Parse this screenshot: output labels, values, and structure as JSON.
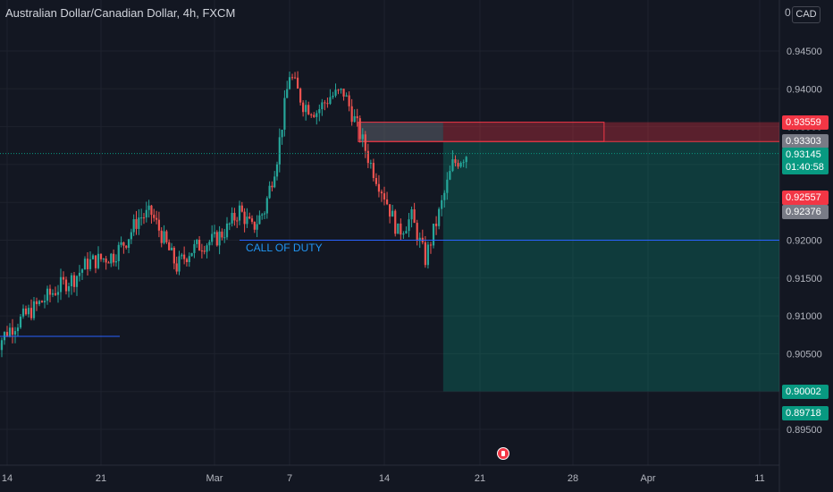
{
  "header": {
    "pair": "Australian Dollar/Canadian Dollar",
    "interval": "4h",
    "exchange": "FXCM",
    "currency": "CAD",
    "currency_prefix": "0"
  },
  "annotation": {
    "label": "CALL OF DUTY"
  },
  "price_tags": [
    {
      "label": "0.93559",
      "price": 0.93559,
      "color": "#f23645"
    },
    {
      "label": "0.93303",
      "price": 0.93303,
      "color": "#787b86"
    },
    {
      "label": "0.93145",
      "time": "01:40:58",
      "price": 0.93145,
      "color": "#089981"
    },
    {
      "label": "0.92557",
      "price": 0.92557,
      "color": "#f23645"
    },
    {
      "label": "0.92376",
      "price": 0.92376,
      "color": "#787b86"
    },
    {
      "label": "0.90002",
      "price": 0.90002,
      "color": "#089981"
    },
    {
      "label": "0.89718",
      "price": 0.89718,
      "color": "#089981"
    }
  ],
  "colors": {
    "up": "#26a69a",
    "down": "#ef5350",
    "stop": "#f23645",
    "target": "#089981",
    "line": "#2962ff"
  },
  "chart_data": {
    "type": "candlestick",
    "title": "Australian Dollar/Canadian Dollar, 4h, FXCM",
    "ylim": [
      0.894,
      0.9515
    ],
    "y_ticks": [
      "0.94500",
      "0.94000",
      "0.93500",
      "0.93000",
      "0.92500",
      "0.92000",
      "0.91500",
      "0.91000",
      "0.90500",
      "0.90000",
      "0.89500"
    ],
    "y_tick_values": [
      0.945,
      0.94,
      0.935,
      0.93,
      0.925,
      0.92,
      0.915,
      0.91,
      0.905,
      0.9,
      0.895
    ],
    "x_ticks": [
      "14",
      "21",
      "Mar",
      "7",
      "14",
      "21",
      "28",
      "Apr",
      "11"
    ],
    "x_tick_dates": [
      "2024-02-14",
      "2024-02-21",
      "2024-03-01",
      "2024-03-07",
      "2024-03-14",
      "2024-03-21",
      "2024-03-28",
      "2024-04-01",
      "2024-04-11"
    ],
    "price_path": [
      [
        "2024-02-12",
        0.908
      ],
      [
        "2024-02-13",
        0.9065
      ],
      [
        "2024-02-14",
        0.908
      ],
      [
        "2024-02-15",
        0.9095
      ],
      [
        "2024-02-16",
        0.911
      ],
      [
        "2024-02-17",
        0.9125
      ],
      [
        "2024-02-18",
        0.914
      ],
      [
        "2024-02-19",
        0.915
      ],
      [
        "2024-02-20",
        0.917
      ],
      [
        "2024-02-21",
        0.9175
      ],
      [
        "2024-02-22",
        0.918
      ],
      [
        "2024-02-23",
        0.92
      ],
      [
        "2024-02-24",
        0.923
      ],
      [
        "2024-02-25",
        0.9235
      ],
      [
        "2024-02-26",
        0.92
      ],
      [
        "2024-02-27",
        0.9165
      ],
      [
        "2024-02-28",
        0.9185
      ],
      [
        "2024-02-29",
        0.9195
      ],
      [
        "2024-03-01",
        0.92
      ],
      [
        "2024-03-02",
        0.9215
      ],
      [
        "2024-03-03",
        0.924
      ],
      [
        "2024-03-04",
        0.9215
      ],
      [
        "2024-03-05",
        0.924
      ],
      [
        "2024-03-06",
        0.931
      ],
      [
        "2024-03-07",
        0.942
      ],
      [
        "2024-03-08",
        0.938
      ],
      [
        "2024-03-09",
        0.937
      ],
      [
        "2024-03-10",
        0.939
      ],
      [
        "2024-03-11",
        0.9395
      ],
      [
        "2024-03-12",
        0.935
      ],
      [
        "2024-03-13",
        0.93
      ],
      [
        "2024-03-14",
        0.926
      ],
      [
        "2024-03-15",
        0.921
      ],
      [
        "2024-03-16",
        0.923
      ],
      [
        "2024-03-17",
        0.9175
      ],
      [
        "2024-03-18",
        0.9235
      ],
      [
        "2024-03-19",
        0.93
      ],
      [
        "2024-03-20",
        0.9314
      ]
    ],
    "position": {
      "type": "short",
      "entry": 0.93303,
      "stop": 0.93559,
      "target": 0.90002
    },
    "horizontal_lines": [
      0.92,
      0.9073
    ],
    "grid": true
  }
}
